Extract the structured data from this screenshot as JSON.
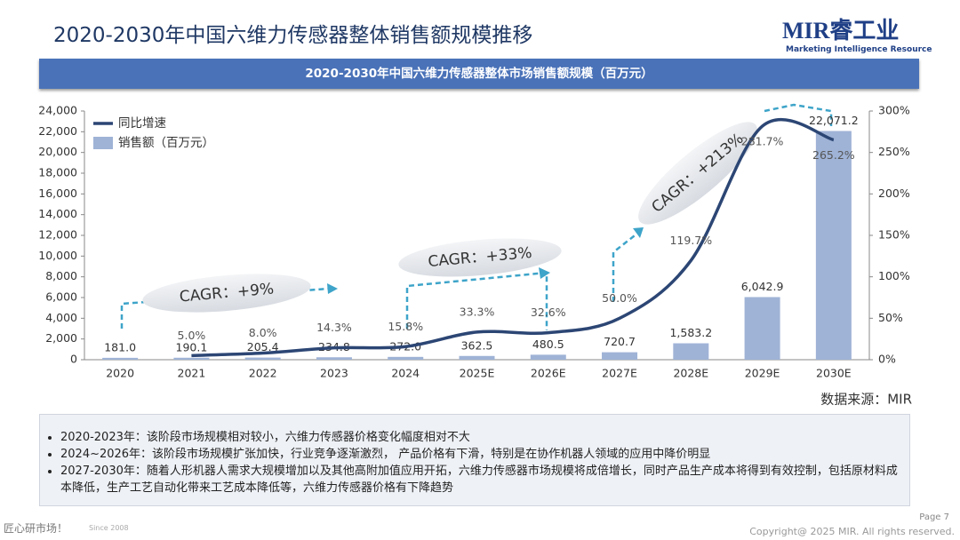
{
  "header": {
    "title": "2020-2030年中国六维力传感器整体销售额规模推移",
    "logo": "MIR睿工业",
    "logo_sub": "Marketing Intelligence Resource"
  },
  "chart_data": {
    "type": "combo",
    "title": "2020-2030年中国六维力传感器整体市场销售额规模（百万元）",
    "categories": [
      "2020",
      "2021",
      "2022",
      "2023",
      "2024",
      "2025E",
      "2026E",
      "2027E",
      "2028E",
      "2029E",
      "2030E"
    ],
    "series": [
      {
        "name": "同比增速",
        "type": "line",
        "axis": "y2",
        "color": "#2c4674",
        "values": [
          null,
          5.0,
          8.0,
          14.3,
          15.8,
          33.3,
          32.6,
          50.0,
          119.7,
          281.7,
          265.2
        ],
        "value_labels": [
          null,
          "5.0%",
          "8.0%",
          "14.3%",
          "15.8%",
          "33.3%",
          "32.6%",
          "50.0%",
          "119.7%",
          "281.7%",
          "265.2%"
        ]
      },
      {
        "name": "销售额（百万元）",
        "type": "bar",
        "color": "#9fb3d6",
        "values": [
          181.0,
          190.1,
          205.4,
          234.8,
          272.0,
          362.5,
          480.5,
          720.7,
          1583.2,
          6042.9,
          22071.2
        ],
        "value_labels": [
          "181.0",
          "190.1",
          "205.4",
          "234.8",
          "272.0",
          "362.5",
          "480.5",
          "720.7",
          "1,583.2",
          "6,042.9",
          "22,071.2"
        ]
      }
    ],
    "ylim": [
      0,
      24000
    ],
    "yticks": [
      0,
      {
        "value": 2000,
        "label": "2,000"
      },
      {
        "value": 4000,
        "label": "4,000"
      },
      {
        "value": 6000,
        "label": "6,000"
      },
      {
        "value": 8000,
        "label": "8,000"
      },
      {
        "value": 10000,
        "label": "10,000"
      },
      {
        "value": 12000,
        "label": "12,000"
      },
      {
        "value": 14000,
        "label": "14,000"
      },
      {
        "value": 16000,
        "label": "16,000"
      },
      {
        "value": 18000,
        "label": "18,000"
      },
      {
        "value": 20000,
        "label": "20,000"
      },
      {
        "value": 22000,
        "label": "22,000"
      },
      {
        "value": 24000,
        "label": "24,000"
      }
    ],
    "y2lim": [
      0,
      300
    ],
    "y2ticks": [
      {
        "value": 0,
        "label": "0%"
      },
      {
        "value": 50,
        "label": "50%"
      },
      {
        "value": 100,
        "label": "100%"
      },
      {
        "value": 150,
        "label": "150%"
      },
      {
        "value": 200,
        "label": "200%"
      },
      {
        "value": 250,
        "label": "250%"
      },
      {
        "value": 300,
        "label": "300%"
      }
    ],
    "legend": "top-left",
    "annotations": [
      "CAGR：+9%",
      "CAGR：+33%",
      "CAGR：+213%"
    ],
    "source": "数据来源：MIR"
  },
  "notes": [
    "2020-2023年：该阶段市场规模相对较小，六维力传感器价格变化幅度相对不大",
    "2024~2026年：该阶段市场规模扩张加快，行业竞争逐渐激烈， 产品价格有下滑，特别是在协作机器人领域的应用中降价明显",
    "2027-2030年：随着人形机器人需求大规模增加以及其他高附加值应用开拓，六维力传感器市场规模将成倍增长，同时产品生产成本将得到有效控制，包括原材料成本降低，生产工艺自动化带来工艺成本降低等，六维力传感器价格有下降趋势"
  ],
  "footer": {
    "slogan": "匠心研市场！",
    "since": "Since 2008",
    "page": "Page 7",
    "copyright": "Copyright@ 2025 MIR. All rights reserved."
  }
}
